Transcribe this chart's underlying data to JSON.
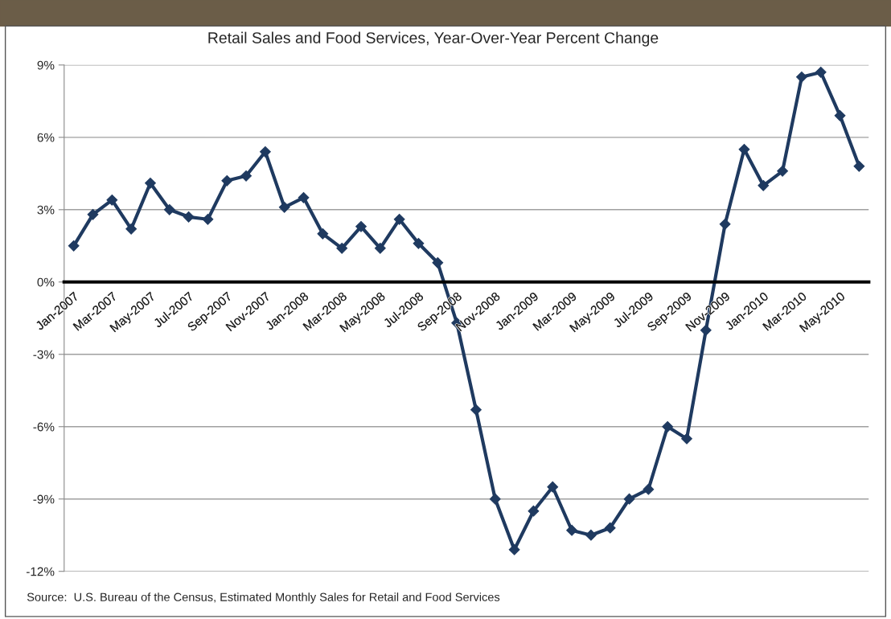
{
  "chart_data": {
    "type": "line",
    "title": "Retail Sales and Food Services, Year-Over-Year Percent Change",
    "categories": [
      "Jan-2007",
      null,
      "Mar-2007",
      null,
      "May-2007",
      null,
      "Jul-2007",
      null,
      "Sep-2007",
      null,
      "Nov-2007",
      null,
      "Jan-2008",
      null,
      "Mar-2008",
      null,
      "May-2008",
      null,
      "Jul-2008",
      null,
      "Sep-2008",
      null,
      "Nov-2008",
      null,
      "Jan-2009",
      null,
      "Mar-2009",
      null,
      "May-2009",
      null,
      "Jul-2009",
      null,
      "Sep-2009",
      null,
      "Nov-2009",
      null,
      "Jan-2010",
      null,
      "Mar-2010",
      null,
      "May-2010",
      null
    ],
    "series": [
      {
        "color": "#1f3a60",
        "values": [
          1.5,
          2.8,
          3.4,
          2.2,
          4.1,
          3.0,
          2.7,
          2.6,
          4.2,
          4.4,
          5.4,
          3.1,
          3.5,
          2.0,
          1.4,
          2.3,
          1.4,
          2.6,
          1.6,
          0.8,
          -1.7,
          -5.3,
          -9.0,
          -11.1,
          -9.5,
          -8.5,
          -10.3,
          -10.5,
          -10.2,
          -9.0,
          -8.6,
          -6.0,
          -6.5,
          -2.0,
          2.4,
          5.5,
          4.0,
          4.6,
          8.5,
          8.7,
          6.9,
          4.8
        ]
      }
    ],
    "ylim": [
      -12,
      9
    ],
    "yticks": [
      {
        "value": -12,
        "label": "-12%"
      },
      {
        "value": -9,
        "label": "-9%"
      },
      {
        "value": -6,
        "label": "-6%"
      },
      {
        "value": -3,
        "label": "-3%"
      },
      {
        "value": 0,
        "label": "0%"
      },
      {
        "value": 3,
        "label": "3%"
      },
      {
        "value": 6,
        "label": "6%"
      },
      {
        "value": 9,
        "label": "9%"
      }
    ],
    "grid": "y",
    "marker": "diamond",
    "line_style": "solid",
    "legend": false,
    "annotations": [
      "Source:  U.S. Bureau of the Census, Estimated Monthly Sales for Retail and Food Services"
    ]
  }
}
